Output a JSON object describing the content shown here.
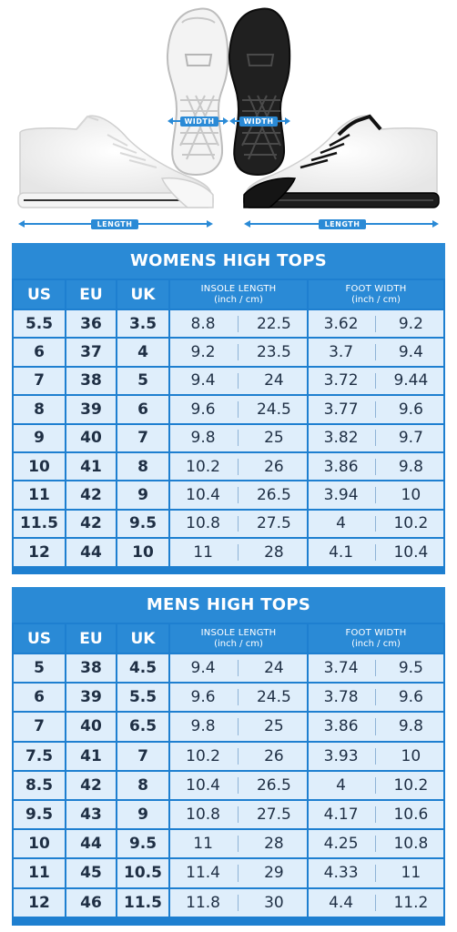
{
  "illustration": {
    "width_label": "WIDTH",
    "length_label": "LENGTH"
  },
  "tables": [
    {
      "title": "WOMENS HIGH TOPS",
      "headers": {
        "us": "US",
        "eu": "EU",
        "uk": "UK",
        "insole": "INSOLE LENGTH",
        "insole_unit": "(inch / cm)",
        "foot": "FOOT WIDTH",
        "foot_unit": "(inch / cm)"
      },
      "rows": [
        {
          "us": "5.5",
          "eu": "36",
          "uk": "3.5",
          "insole_in": "8.8",
          "insole_cm": "22.5",
          "width_in": "3.62",
          "width_cm": "9.2"
        },
        {
          "us": "6",
          "eu": "37",
          "uk": "4",
          "insole_in": "9.2",
          "insole_cm": "23.5",
          "width_in": "3.7",
          "width_cm": "9.4"
        },
        {
          "us": "7",
          "eu": "38",
          "uk": "5",
          "insole_in": "9.4",
          "insole_cm": "24",
          "width_in": "3.72",
          "width_cm": "9.44"
        },
        {
          "us": "8",
          "eu": "39",
          "uk": "6",
          "insole_in": "9.6",
          "insole_cm": "24.5",
          "width_in": "3.77",
          "width_cm": "9.6"
        },
        {
          "us": "9",
          "eu": "40",
          "uk": "7",
          "insole_in": "9.8",
          "insole_cm": "25",
          "width_in": "3.82",
          "width_cm": "9.7"
        },
        {
          "us": "10",
          "eu": "41",
          "uk": "8",
          "insole_in": "10.2",
          "insole_cm": "26",
          "width_in": "3.86",
          "width_cm": "9.8"
        },
        {
          "us": "11",
          "eu": "42",
          "uk": "9",
          "insole_in": "10.4",
          "insole_cm": "26.5",
          "width_in": "3.94",
          "width_cm": "10"
        },
        {
          "us": "11.5",
          "eu": "42",
          "uk": "9.5",
          "insole_in": "10.8",
          "insole_cm": "27.5",
          "width_in": "4",
          "width_cm": "10.2"
        },
        {
          "us": "12",
          "eu": "44",
          "uk": "10",
          "insole_in": "11",
          "insole_cm": "28",
          "width_in": "4.1",
          "width_cm": "10.4"
        }
      ]
    },
    {
      "title": "MENS HIGH TOPS",
      "headers": {
        "us": "US",
        "eu": "EU",
        "uk": "UK",
        "insole": "INSOLE LENGTH",
        "insole_unit": "(inch / cm)",
        "foot": "FOOT WIDTH",
        "foot_unit": "(inch / cm)"
      },
      "rows": [
        {
          "us": "5",
          "eu": "38",
          "uk": "4.5",
          "insole_in": "9.4",
          "insole_cm": "24",
          "width_in": "3.74",
          "width_cm": "9.5"
        },
        {
          "us": "6",
          "eu": "39",
          "uk": "5.5",
          "insole_in": "9.6",
          "insole_cm": "24.5",
          "width_in": "3.78",
          "width_cm": "9.6"
        },
        {
          "us": "7",
          "eu": "40",
          "uk": "6.5",
          "insole_in": "9.8",
          "insole_cm": "25",
          "width_in": "3.86",
          "width_cm": "9.8"
        },
        {
          "us": "7.5",
          "eu": "41",
          "uk": "7",
          "insole_in": "10.2",
          "insole_cm": "26",
          "width_in": "3.93",
          "width_cm": "10"
        },
        {
          "us": "8.5",
          "eu": "42",
          "uk": "8",
          "insole_in": "10.4",
          "insole_cm": "26.5",
          "width_in": "4",
          "width_cm": "10.2"
        },
        {
          "us": "9.5",
          "eu": "43",
          "uk": "9",
          "insole_in": "10.8",
          "insole_cm": "27.5",
          "width_in": "4.17",
          "width_cm": "10.6"
        },
        {
          "us": "10",
          "eu": "44",
          "uk": "9.5",
          "insole_in": "11",
          "insole_cm": "28",
          "width_in": "4.25",
          "width_cm": "10.8"
        },
        {
          "us": "11",
          "eu": "45",
          "uk": "10.5",
          "insole_in": "11.4",
          "insole_cm": "29",
          "width_in": "4.33",
          "width_cm": "11"
        },
        {
          "us": "12",
          "eu": "46",
          "uk": "11.5",
          "insole_in": "11.8",
          "insole_cm": "30",
          "width_in": "4.4",
          "width_cm": "11.2"
        }
      ]
    }
  ],
  "colors": {
    "header_blue": "#2a8ad6",
    "cell_bg": "#dfeefb",
    "text_dark": "#1f2f44"
  }
}
